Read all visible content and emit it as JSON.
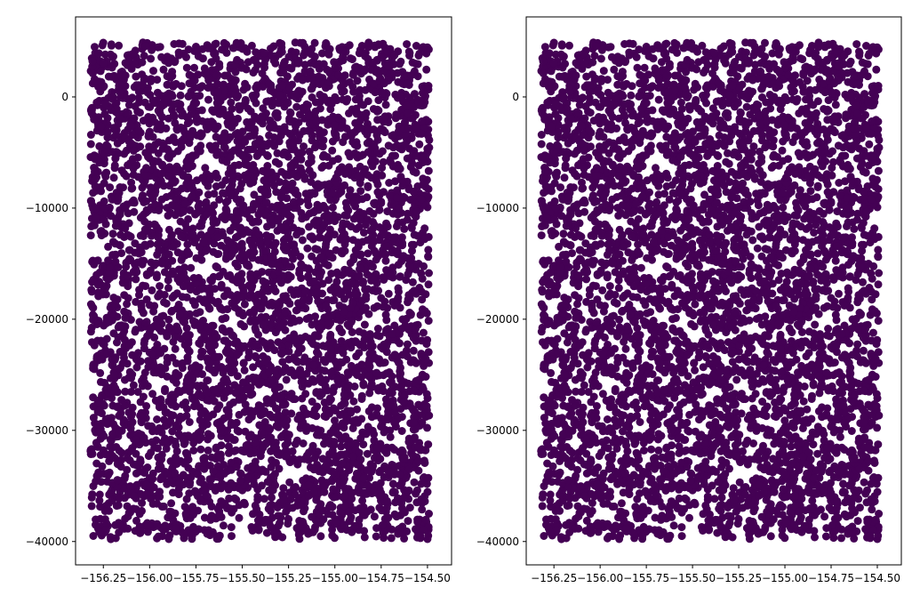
{
  "chart_data": [
    {
      "type": "scatter",
      "title": "",
      "xlabel": "",
      "ylabel": "",
      "xlim": [
        -156.4,
        -154.37
      ],
      "ylim": [
        -42100,
        7200
      ],
      "x_ticks": [
        -156.25,
        -156.0,
        -155.75,
        -155.5,
        -155.25,
        -155.0,
        -154.75,
        -154.5
      ],
      "x_tick_labels": [
        "−156.25",
        "−156.00",
        "−155.75",
        "−155.50",
        "−155.25",
        "−155.00",
        "−154.75",
        "−154.50"
      ],
      "y_ticks": [
        0,
        -10000,
        -20000,
        -30000,
        -40000
      ],
      "y_tick_labels": [
        "0",
        "−10000",
        "−20000",
        "−30000",
        "−40000"
      ],
      "marker_color": "#440154",
      "x_range_of_points": [
        -156.32,
        -154.49
      ],
      "y_range_of_points": [
        -39800,
        4900
      ],
      "approx_point_count": 5000,
      "grid": false
    },
    {
      "type": "scatter",
      "title": "",
      "xlabel": "",
      "ylabel": "",
      "xlim": [
        -156.4,
        -154.37
      ],
      "ylim": [
        -42100,
        7200
      ],
      "x_ticks": [
        -156.25,
        -156.0,
        -155.75,
        -155.5,
        -155.25,
        -155.0,
        -154.75,
        -154.5
      ],
      "x_tick_labels": [
        "−156.25",
        "−156.00",
        "−155.75",
        "−155.50",
        "−155.25",
        "−155.00",
        "−154.75",
        "−154.50"
      ],
      "y_ticks": [
        0,
        -10000,
        -20000,
        -30000,
        -40000
      ],
      "y_tick_labels": [
        "0",
        "−10000",
        "−20000",
        "−30000",
        "−40000"
      ],
      "marker_color": "#440154",
      "x_range_of_points": [
        -156.32,
        -154.49
      ],
      "y_range_of_points": [
        -39800,
        4900
      ],
      "approx_point_count": 5000,
      "grid": false
    }
  ]
}
